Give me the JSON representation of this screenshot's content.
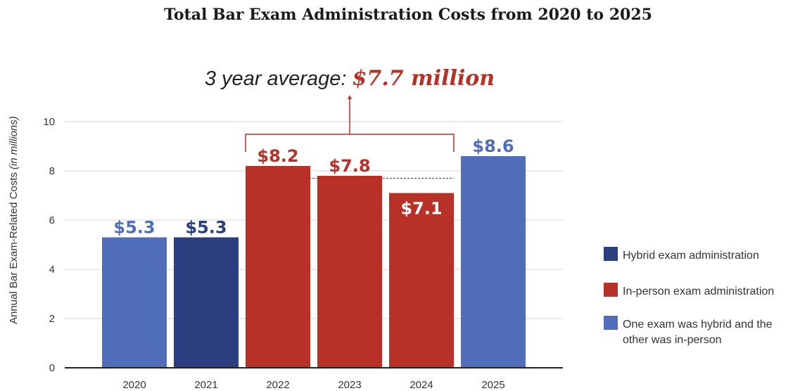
{
  "chart_data": {
    "type": "bar",
    "title": "Total Bar Exam Administration Costs from 2020 to 2025",
    "ylabel_main": "Annual Bar Exam-Related Costs",
    "ylabel_unit": "(in millions)",
    "xlabel": "",
    "ylim": [
      0,
      10
    ],
    "yticks": [
      0,
      2,
      4,
      6,
      8,
      10
    ],
    "grid": true,
    "legend_position": "right",
    "categories": [
      "2020",
      "2021",
      "2022",
      "2023",
      "2024",
      "2025"
    ],
    "values": [
      5.3,
      5.3,
      8.2,
      7.8,
      7.1,
      8.6
    ],
    "data_labels": [
      "$5.3",
      "$5.3",
      "$8.2",
      "$7.8",
      "$7.1",
      "$8.6"
    ],
    "bar_types": [
      "mixed",
      "hybrid",
      "inperson",
      "inperson",
      "inperson",
      "mixed"
    ],
    "label_inside": [
      false,
      false,
      false,
      false,
      true,
      false
    ],
    "legend": [
      {
        "key": "hybrid",
        "lines": [
          "Hybrid exam administration"
        ],
        "color": "#2b3f80"
      },
      {
        "key": "inperson",
        "lines": [
          "In-person exam administration"
        ],
        "color": "#b73127"
      },
      {
        "key": "mixed",
        "lines": [
          "One exam was hybrid and the",
          "other was in-person"
        ],
        "color": "#4f6db8"
      }
    ],
    "annotation": {
      "text_prefix": "3 year average: ",
      "text_value": "$7.7 million",
      "value": 7.7,
      "span": [
        "2022",
        "2024"
      ]
    }
  },
  "colors": {
    "hybrid": "#2b3f80",
    "inperson": "#b73127",
    "mixed": "#4f6db8",
    "grid": "#d4d4d4",
    "axis": "#222222"
  }
}
